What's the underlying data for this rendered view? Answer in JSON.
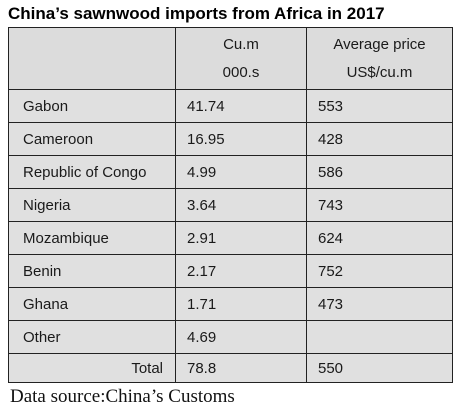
{
  "title": "China’s sawnwood imports from Africa in 2017",
  "table": {
    "headers": {
      "country": "",
      "volume_line1": "Cu.m",
      "volume_line2": "000.s",
      "price_line1": "Average price",
      "price_line2": "US$/cu.m"
    },
    "rows": [
      {
        "country": "Gabon",
        "volume": "41.74",
        "price": "553"
      },
      {
        "country": "Cameroon",
        "volume": "16.95",
        "price": "428"
      },
      {
        "country": "Republic of Congo",
        "volume": "4.99",
        "price": "586"
      },
      {
        "country": "Nigeria",
        "volume": "3.64",
        "price": "743"
      },
      {
        "country": "Mozambique",
        "volume": "2.91",
        "price": "624"
      },
      {
        "country": "Benin",
        "volume": "2.17",
        "price": "752"
      },
      {
        "country": "Ghana",
        "volume": "1.71",
        "price": "473"
      },
      {
        "country": "Other",
        "volume": "4.69",
        "price": ""
      }
    ],
    "total": {
      "label": "Total",
      "volume": "78.8",
      "price": "550"
    }
  },
  "footer": "Data source:China’s Customs",
  "colors": {
    "header_fill": "#dcdcdc",
    "body_fill": "#e0e0e0",
    "border": "#222222"
  }
}
